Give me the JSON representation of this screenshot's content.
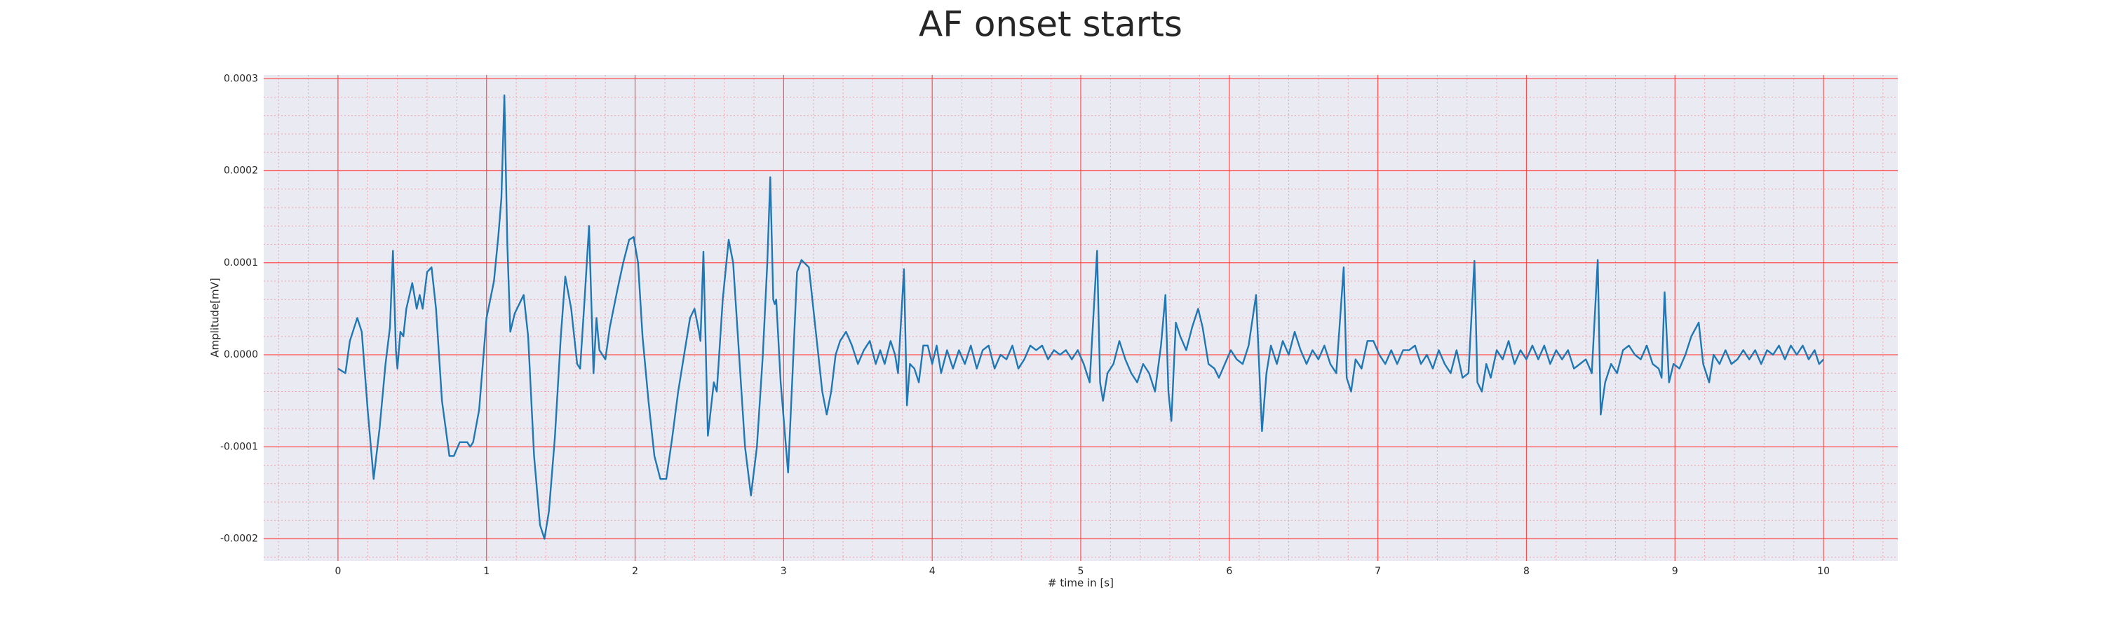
{
  "chart_data": {
    "type": "line",
    "title": "AF onset starts",
    "xlabel": "# time in [s]",
    "ylabel": "Amplitude[mV]",
    "color": "#1f77b4",
    "grid": true,
    "minor_grid": true,
    "xlim": [
      -0.5,
      10.5
    ],
    "xticks": [
      0,
      1,
      2,
      3,
      4,
      5,
      6,
      7,
      8,
      9,
      10
    ],
    "ylim": [
      -0.000224,
      0.000304
    ],
    "yticks": [
      {
        "value": -0.0002,
        "label": "-0.0002"
      },
      {
        "value": -0.0001,
        "label": "-0.0001"
      },
      {
        "value": 0,
        "label": "0.0000"
      },
      {
        "value": 0.0001,
        "label": "0.0001"
      },
      {
        "value": 0.0002,
        "label": "0.0002"
      },
      {
        "value": 0.0003,
        "label": "0.0003"
      }
    ],
    "x": [
      0,
      0.05,
      0.08,
      0.12,
      0.13,
      0.16,
      0.2,
      0.24,
      0.28,
      0.32,
      0.35,
      0.37,
      0.39,
      0.4,
      0.42,
      0.44,
      0.46,
      0.5,
      0.53,
      0.55,
      0.57,
      0.6,
      0.63,
      0.66,
      0.7,
      0.75,
      0.78,
      0.82,
      0.87,
      0.89,
      0.91,
      0.95,
      1,
      1.05,
      1.08,
      1.1,
      1.12,
      1.14,
      1.16,
      1.19,
      1.22,
      1.25,
      1.28,
      1.32,
      1.36,
      1.39,
      1.42,
      1.46,
      1.5,
      1.53,
      1.57,
      1.61,
      1.63,
      1.66,
      1.69,
      1.72,
      1.74,
      1.76,
      1.8,
      1.83,
      1.88,
      1.92,
      1.96,
      1.99,
      2.02,
      2.05,
      2.09,
      2.13,
      2.17,
      2.21,
      2.25,
      2.29,
      2.33,
      2.37,
      2.4,
      2.43,
      2.44,
      2.46,
      2.49,
      2.53,
      2.55,
      2.59,
      2.63,
      2.66,
      2.7,
      2.74,
      2.78,
      2.82,
      2.86,
      2.89,
      2.91,
      2.93,
      2.94,
      2.95,
      2.98,
      3.03,
      3.06,
      3.09,
      3.12,
      3.17,
      3.22,
      3.26,
      3.29,
      3.32,
      3.35,
      3.38,
      3.42,
      3.46,
      3.5,
      3.54,
      3.58,
      3.62,
      3.65,
      3.68,
      3.72,
      3.75,
      3.77,
      3.81,
      3.83,
      3.85,
      3.88,
      3.91,
      3.94,
      3.97,
      4,
      4.03,
      4.06,
      4.1,
      4.14,
      4.18,
      4.22,
      4.26,
      4.3,
      4.34,
      4.38,
      4.42,
      4.46,
      4.5,
      4.54,
      4.58,
      4.62,
      4.66,
      4.7,
      4.74,
      4.78,
      4.82,
      4.86,
      4.9,
      4.94,
      4.98,
      5.02,
      5.06,
      5.11,
      5.13,
      5.15,
      5.18,
      5.22,
      5.26,
      5.3,
      5.34,
      5.38,
      5.42,
      5.46,
      5.5,
      5.54,
      5.57,
      5.59,
      5.61,
      5.64,
      5.67,
      5.71,
      5.75,
      5.79,
      5.82,
      5.86,
      5.9,
      5.93,
      5.97,
      6.01,
      6.05,
      6.09,
      6.13,
      6.18,
      6.22,
      6.25,
      6.28,
      6.32,
      6.36,
      6.4,
      6.44,
      6.48,
      6.52,
      6.56,
      6.6,
      6.64,
      6.68,
      6.72,
      6.77,
      6.79,
      6.82,
      6.85,
      6.89,
      6.93,
      6.97,
      7.01,
      7.05,
      7.09,
      7.13,
      7.17,
      7.21,
      7.25,
      7.29,
      7.33,
      7.37,
      7.41,
      7.45,
      7.49,
      7.53,
      7.57,
      7.61,
      7.65,
      7.67,
      7.7,
      7.73,
      7.76,
      7.8,
      7.84,
      7.88,
      7.92,
      7.96,
      8,
      8.04,
      8.08,
      8.12,
      8.16,
      8.2,
      8.24,
      8.28,
      8.32,
      8.36,
      8.4,
      8.44,
      8.48,
      8.5,
      8.53,
      8.57,
      8.61,
      8.65,
      8.69,
      8.73,
      8.77,
      8.81,
      8.85,
      8.89,
      8.91,
      8.93,
      8.96,
      8.99,
      9.03,
      9.07,
      9.11,
      9.16,
      9.19,
      9.23,
      9.26,
      9.3,
      9.34,
      9.38,
      9.42,
      9.46,
      9.5,
      9.54,
      9.58,
      9.62,
      9.66,
      9.7,
      9.74,
      9.78,
      9.82,
      9.86,
      9.9,
      9.94,
      9.97,
      10
    ],
    "values": [
      -1.5e-05,
      -2e-05,
      1.5e-05,
      3.5e-05,
      4e-05,
      2.5e-05,
      -6e-05,
      -0.000135,
      -8e-05,
      -1e-05,
      3e-05,
      0.000113,
      5e-06,
      -1.5e-05,
      2.5e-05,
      2e-05,
      5e-05,
      7.8e-05,
      5e-05,
      6.5e-05,
      5e-05,
      9e-05,
      9.5e-05,
      5e-05,
      -5e-05,
      -0.00011,
      -0.00011,
      -9.5e-05,
      -9.5e-05,
      -0.0001,
      -9.5e-05,
      -6e-05,
      4e-05,
      8e-05,
      0.00013,
      0.00017,
      0.000282,
      0.00012,
      2.5e-05,
      4.5e-05,
      5.5e-05,
      6.5e-05,
      2e-05,
      -0.00011,
      -0.000185,
      -0.0002,
      -0.00017,
      -9e-05,
      2e-05,
      8.5e-05,
      5e-05,
      -1e-05,
      -1.5e-05,
      6e-05,
      0.00014,
      -2e-05,
      4e-05,
      5e-06,
      -5e-06,
      3e-05,
      7e-05,
      0.0001,
      0.000125,
      0.000128,
      0.0001,
      2e-05,
      -5e-05,
      -0.00011,
      -0.000135,
      -0.000135,
      -9e-05,
      -4e-05,
      0,
      4e-05,
      5e-05,
      2.5e-05,
      1.5e-05,
      0.000112,
      -8.8e-05,
      -3e-05,
      -4e-05,
      6e-05,
      0.000125,
      0.0001,
      0,
      -0.0001,
      -0.000153,
      -0.0001,
      0,
      0.0001,
      0.000193,
      6e-05,
      5.5e-05,
      6e-05,
      -3e-05,
      -0.000128,
      -2e-05,
      9e-05,
      0.000103,
      9.5e-05,
      2e-05,
      -4e-05,
      -6.5e-05,
      -4e-05,
      0,
      1.5e-05,
      2.5e-05,
      1e-05,
      -1e-05,
      5e-06,
      1.5e-05,
      -1e-05,
      5e-06,
      -1e-05,
      1.5e-05,
      0,
      -2e-05,
      9.3e-05,
      -5.5e-05,
      -1e-05,
      -1.5e-05,
      -3e-05,
      1e-05,
      1e-05,
      -1e-05,
      1e-05,
      -2e-05,
      5e-06,
      -1.5e-05,
      5e-06,
      -1e-05,
      1e-05,
      -1.5e-05,
      5e-06,
      1e-05,
      -1.5e-05,
      0,
      -5e-06,
      1e-05,
      -1.5e-05,
      -5e-06,
      1e-05,
      5e-06,
      1e-05,
      -5e-06,
      5e-06,
      0,
      5e-06,
      -5e-06,
      5e-06,
      -1e-05,
      -3e-05,
      0.000113,
      -3e-05,
      -5e-05,
      -2e-05,
      -1e-05,
      1.5e-05,
      -5e-06,
      -2e-05,
      -3e-05,
      -1e-05,
      -2e-05,
      -4e-05,
      1e-05,
      6.5e-05,
      -4e-05,
      -7.2e-05,
      3.5e-05,
      2e-05,
      5e-06,
      3e-05,
      5e-05,
      3e-05,
      -1e-05,
      -1.5e-05,
      -2.5e-05,
      -1e-05,
      5e-06,
      -5e-06,
      -1e-05,
      1e-05,
      6.5e-05,
      -8.3e-05,
      -2e-05,
      1e-05,
      -1e-05,
      1.5e-05,
      0,
      2.5e-05,
      5e-06,
      -1e-05,
      5e-06,
      -5e-06,
      1e-05,
      -1e-05,
      -2e-05,
      9.5e-05,
      -2.5e-05,
      -4e-05,
      -5e-06,
      -1.5e-05,
      1.5e-05,
      1.5e-05,
      0,
      -1e-05,
      5e-06,
      -1e-05,
      5e-06,
      5e-06,
      1e-05,
      -1e-05,
      0,
      -1.5e-05,
      5e-06,
      -1e-05,
      -2e-05,
      5e-06,
      -2.5e-05,
      -2e-05,
      0.000102,
      -3e-05,
      -4e-05,
      -1e-05,
      -2.5e-05,
      5e-06,
      -5e-06,
      1.5e-05,
      -1e-05,
      5e-06,
      -5e-06,
      1e-05,
      -5e-06,
      1e-05,
      -1e-05,
      5e-06,
      -5e-06,
      5e-06,
      -1.5e-05,
      -1e-05,
      -5e-06,
      -2e-05,
      0.000103,
      -6.5e-05,
      -3e-05,
      -1e-05,
      -2e-05,
      5e-06,
      1e-05,
      0,
      -5e-06,
      1e-05,
      -1e-05,
      -1.5e-05,
      -2.5e-05,
      6.8e-05,
      -3e-05,
      -1e-05,
      -1.5e-05,
      0,
      2e-05,
      3.5e-05,
      -1e-05,
      -3e-05,
      0,
      -1e-05,
      5e-06,
      -1e-05,
      -5e-06,
      5e-06,
      -5e-06,
      5e-06,
      -1e-05,
      5e-06,
      0,
      1e-05,
      -5e-06,
      1e-05,
      0,
      1e-05,
      -5e-06,
      5e-06,
      -1e-05,
      -5e-06
    ]
  }
}
